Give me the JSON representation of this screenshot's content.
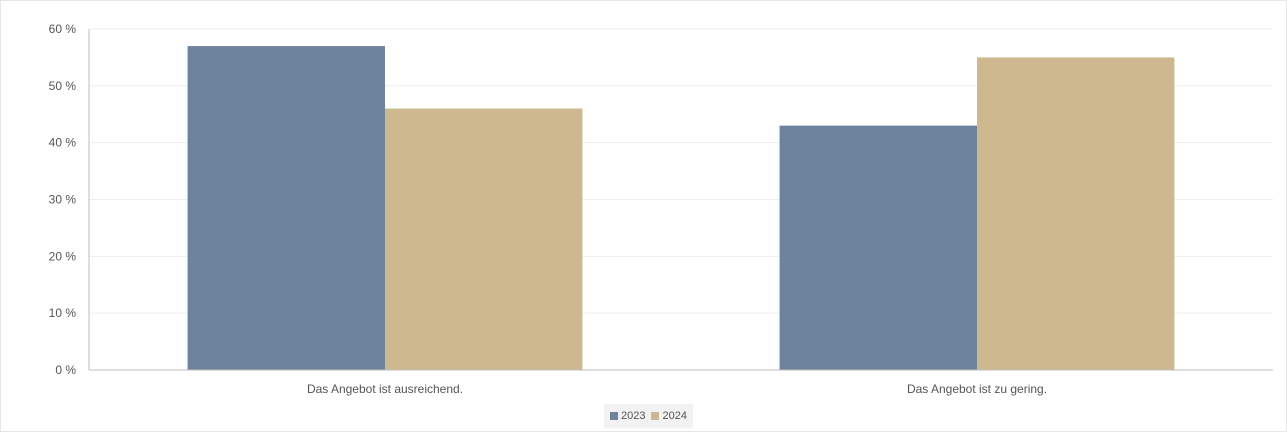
{
  "chart_data": {
    "type": "bar",
    "categories": [
      "Das Angebot ist ausreichend.",
      "Das Angebot ist zu gering."
    ],
    "series": [
      {
        "name": "2023",
        "values": [
          57,
          43
        ],
        "color": "#6e849c"
      },
      {
        "name": "2024",
        "values": [
          46,
          55
        ],
        "color": "#cdb88f"
      }
    ],
    "yticks": [
      "0 %",
      "10 %",
      "20 %",
      "30 %",
      "40 %",
      "50 %",
      "60 %"
    ],
    "ylim": [
      0,
      60
    ],
    "yunit": "%",
    "grid": true,
    "legend_position": "bottom-center"
  }
}
